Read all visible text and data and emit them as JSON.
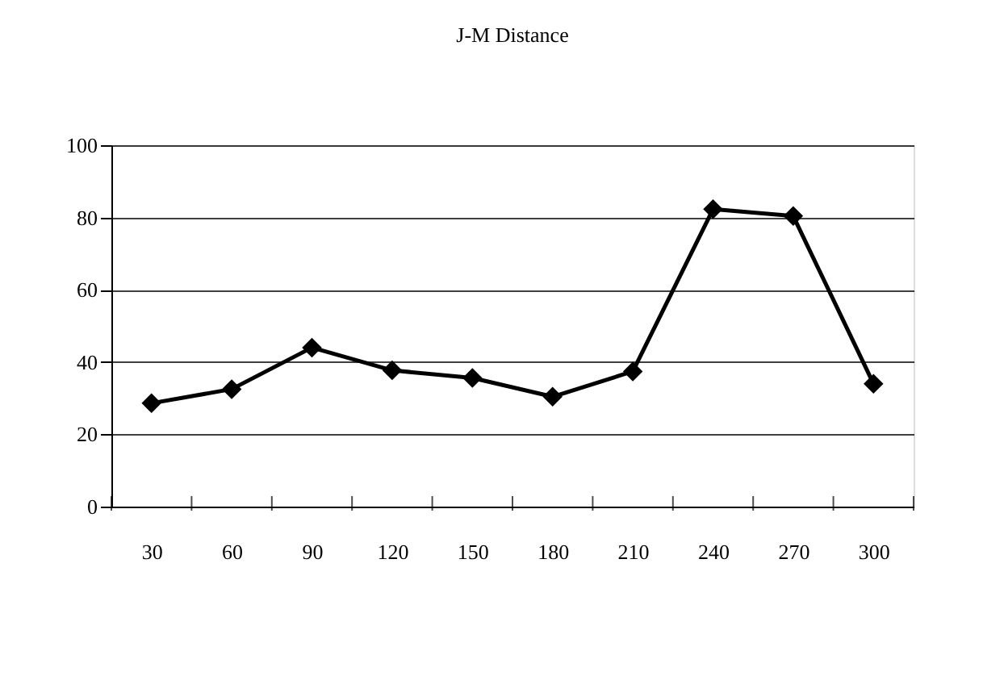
{
  "chart_data": {
    "type": "line",
    "title": "J-M Distance",
    "categories": [
      "30",
      "60",
      "90",
      "120",
      "150",
      "180",
      "210",
      "240",
      "270",
      "300"
    ],
    "series": [
      {
        "color": "#000000",
        "values": [
          28.6,
          32.5,
          44,
          37.7,
          35.6,
          30.4,
          37.4,
          82.3,
          80.4,
          34
        ]
      }
    ],
    "ylim": [
      0,
      100
    ],
    "yticks": [
      0,
      20,
      40,
      60,
      80,
      100
    ],
    "grid": "y",
    "marker": "diamond",
    "line_style": "solid",
    "legend": false
  }
}
